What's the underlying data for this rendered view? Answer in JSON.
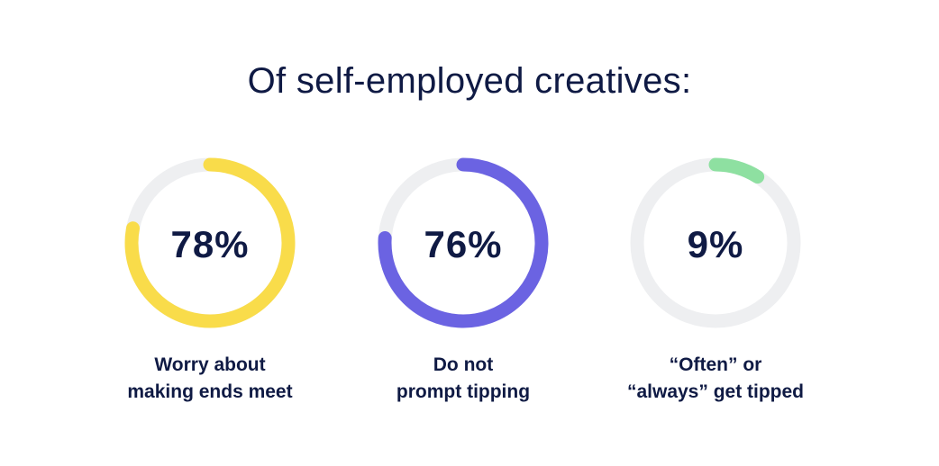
{
  "title": "Of self-employed creatives:",
  "colors": {
    "track": "#eeeff1",
    "text": "#0f1a44"
  },
  "chart_data": [
    {
      "type": "pie",
      "value": 78,
      "value_label": "78%",
      "color": "#f9dc4a",
      "label_lines": [
        "Worry about",
        "making ends meet"
      ]
    },
    {
      "type": "pie",
      "value": 76,
      "value_label": "76%",
      "color": "#6b63e2",
      "label_lines": [
        "Do not",
        "prompt tipping"
      ]
    },
    {
      "type": "pie",
      "value": 9,
      "value_label": "9%",
      "color": "#8ee0a1",
      "label_lines": [
        "“Often” or",
        "“always” get tipped"
      ]
    }
  ]
}
